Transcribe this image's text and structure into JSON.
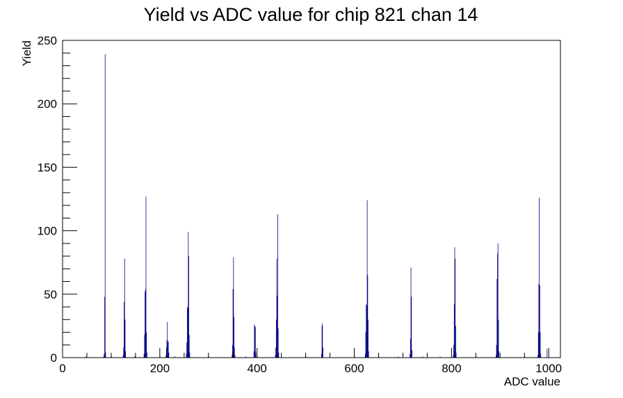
{
  "chart_data": {
    "type": "histogram",
    "title": "Yield vs ADC value for chip 821 chan 14",
    "xlabel": "ADC value",
    "ylabel": "Yield",
    "xlim": [
      0,
      1024
    ],
    "ylim": [
      0,
      250
    ],
    "x_ticks": [
      0,
      200,
      400,
      600,
      800,
      1000
    ],
    "y_ticks": [
      0,
      50,
      100,
      150,
      200,
      250
    ],
    "grid": false,
    "legend": "none",
    "bar_color": "#000080",
    "bins": [
      {
        "x": 48,
        "y": 1
      },
      {
        "x": 84,
        "y": 1
      },
      {
        "x": 85,
        "y": 3
      },
      {
        "x": 86,
        "y": 48
      },
      {
        "x": 87,
        "y": 239
      },
      {
        "x": 88,
        "y": 4
      },
      {
        "x": 100,
        "y": 1
      },
      {
        "x": 124,
        "y": 2
      },
      {
        "x": 125,
        "y": 8
      },
      {
        "x": 126,
        "y": 44
      },
      {
        "x": 127,
        "y": 78
      },
      {
        "x": 128,
        "y": 30
      },
      {
        "x": 129,
        "y": 5
      },
      {
        "x": 148,
        "y": 1
      },
      {
        "x": 167,
        "y": 3
      },
      {
        "x": 168,
        "y": 18
      },
      {
        "x": 169,
        "y": 52
      },
      {
        "x": 170,
        "y": 54
      },
      {
        "x": 171,
        "y": 127
      },
      {
        "x": 172,
        "y": 20
      },
      {
        "x": 173,
        "y": 4
      },
      {
        "x": 200,
        "y": 1
      },
      {
        "x": 212,
        "y": 2
      },
      {
        "x": 213,
        "y": 8
      },
      {
        "x": 214,
        "y": 14
      },
      {
        "x": 215,
        "y": 28
      },
      {
        "x": 216,
        "y": 12
      },
      {
        "x": 217,
        "y": 13
      },
      {
        "x": 218,
        "y": 4
      },
      {
        "x": 230,
        "y": 1
      },
      {
        "x": 254,
        "y": 3
      },
      {
        "x": 255,
        "y": 12
      },
      {
        "x": 256,
        "y": 40
      },
      {
        "x": 257,
        "y": 39
      },
      {
        "x": 258,
        "y": 99
      },
      {
        "x": 259,
        "y": 80
      },
      {
        "x": 260,
        "y": 18
      },
      {
        "x": 261,
        "y": 4
      },
      {
        "x": 300,
        "y": 1
      },
      {
        "x": 348,
        "y": 2
      },
      {
        "x": 349,
        "y": 10
      },
      {
        "x": 350,
        "y": 54
      },
      {
        "x": 351,
        "y": 79
      },
      {
        "x": 352,
        "y": 32
      },
      {
        "x": 353,
        "y": 8
      },
      {
        "x": 354,
        "y": 2
      },
      {
        "x": 376,
        "y": 1
      },
      {
        "x": 393,
        "y": 5
      },
      {
        "x": 394,
        "y": 26
      },
      {
        "x": 395,
        "y": 25
      },
      {
        "x": 396,
        "y": 24
      },
      {
        "x": 397,
        "y": 4
      },
      {
        "x": 400,
        "y": 1
      },
      {
        "x": 437,
        "y": 2
      },
      {
        "x": 438,
        "y": 8
      },
      {
        "x": 439,
        "y": 30
      },
      {
        "x": 440,
        "y": 78
      },
      {
        "x": 441,
        "y": 49
      },
      {
        "x": 442,
        "y": 113
      },
      {
        "x": 443,
        "y": 23
      },
      {
        "x": 444,
        "y": 4
      },
      {
        "x": 500,
        "y": 1
      },
      {
        "x": 532,
        "y": 3
      },
      {
        "x": 533,
        "y": 25
      },
      {
        "x": 534,
        "y": 27
      },
      {
        "x": 535,
        "y": 8
      },
      {
        "x": 600,
        "y": 1
      },
      {
        "x": 622,
        "y": 3
      },
      {
        "x": 623,
        "y": 20
      },
      {
        "x": 624,
        "y": 42
      },
      {
        "x": 625,
        "y": 41
      },
      {
        "x": 626,
        "y": 124
      },
      {
        "x": 627,
        "y": 65
      },
      {
        "x": 628,
        "y": 30
      },
      {
        "x": 629,
        "y": 5
      },
      {
        "x": 650,
        "y": 1
      },
      {
        "x": 690,
        "y": 1
      },
      {
        "x": 714,
        "y": 3
      },
      {
        "x": 715,
        "y": 15
      },
      {
        "x": 716,
        "y": 71
      },
      {
        "x": 717,
        "y": 48
      },
      {
        "x": 718,
        "y": 6
      },
      {
        "x": 740,
        "y": 1
      },
      {
        "x": 776,
        "y": 1
      },
      {
        "x": 803,
        "y": 2
      },
      {
        "x": 804,
        "y": 10
      },
      {
        "x": 805,
        "y": 42
      },
      {
        "x": 806,
        "y": 87
      },
      {
        "x": 807,
        "y": 78
      },
      {
        "x": 808,
        "y": 25
      },
      {
        "x": 809,
        "y": 4
      },
      {
        "x": 850,
        "y": 1
      },
      {
        "x": 891,
        "y": 2
      },
      {
        "x": 892,
        "y": 10
      },
      {
        "x": 893,
        "y": 62
      },
      {
        "x": 894,
        "y": 82
      },
      {
        "x": 895,
        "y": 90
      },
      {
        "x": 896,
        "y": 30
      },
      {
        "x": 897,
        "y": 5
      },
      {
        "x": 950,
        "y": 1
      },
      {
        "x": 977,
        "y": 2
      },
      {
        "x": 978,
        "y": 20
      },
      {
        "x": 979,
        "y": 58
      },
      {
        "x": 980,
        "y": 126
      },
      {
        "x": 981,
        "y": 57
      },
      {
        "x": 982,
        "y": 20
      },
      {
        "x": 983,
        "y": 3
      },
      {
        "x": 996,
        "y": 7
      }
    ]
  }
}
